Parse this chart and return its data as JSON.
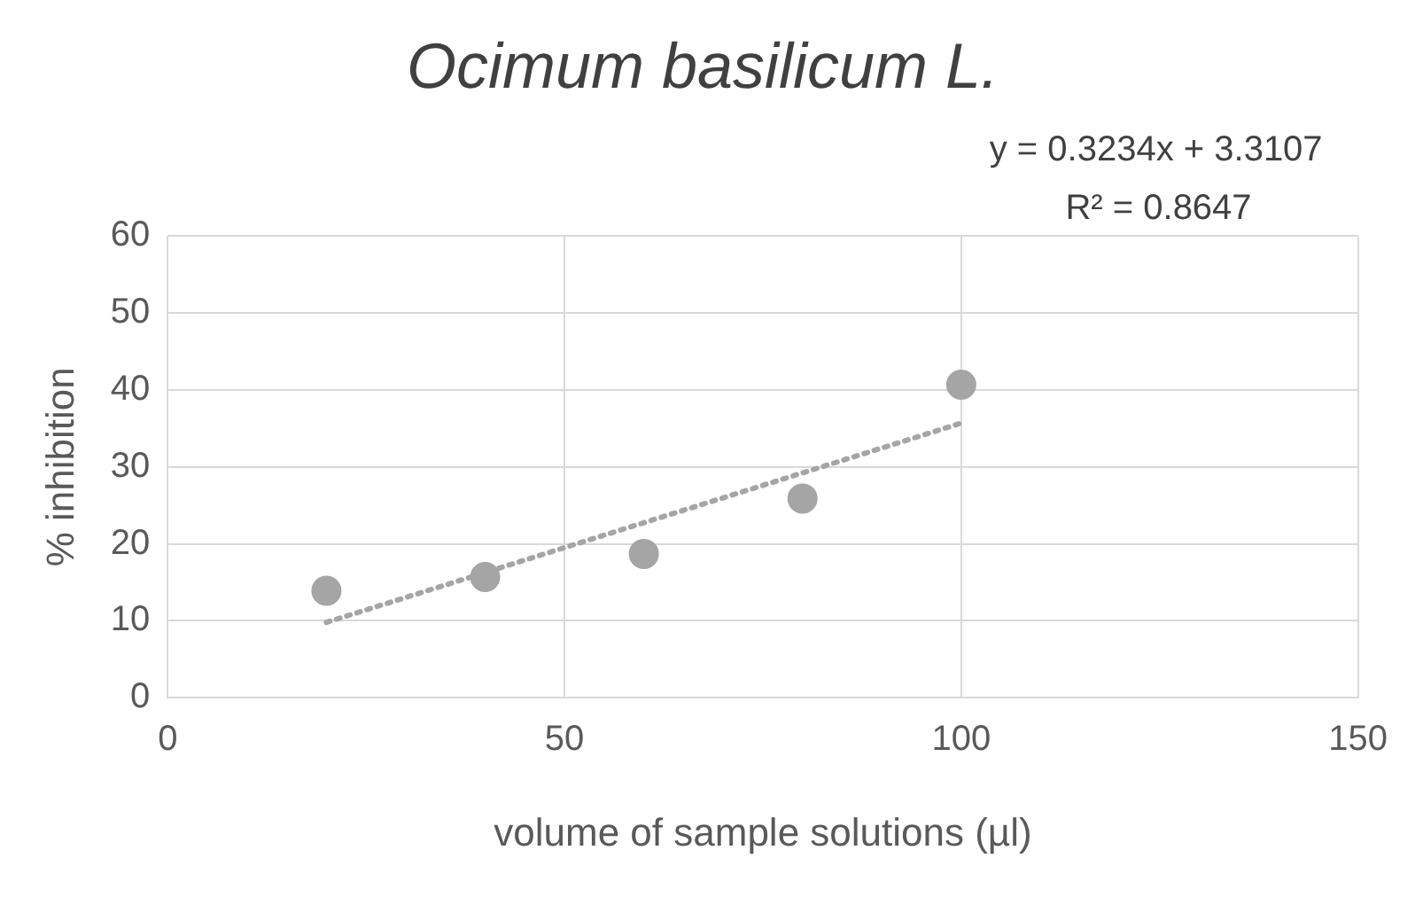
{
  "chart_data": {
    "type": "scatter",
    "title": "Ocimum basilicum L.",
    "xlabel": "volume of sample solutions (µl)",
    "ylabel": "% inhibition",
    "annotations": [
      "y = 0.3234x + 3.3107",
      "R² = 0.8647"
    ],
    "xlim": [
      0,
      150
    ],
    "xticks": [
      0,
      50,
      100,
      150
    ],
    "ylim": [
      0,
      60
    ],
    "yticks": [
      0,
      10,
      20,
      30,
      40,
      50,
      60
    ],
    "grid": true,
    "marker": "circle",
    "series": [
      {
        "type": "scatter",
        "color": "#a5a5a5",
        "x": [
          20,
          40,
          60,
          80,
          100
        ],
        "values": [
          13.9,
          15.7,
          18.7,
          25.9,
          40.7
        ]
      },
      {
        "type": "line",
        "color": "#a5a5a5",
        "marker": "none",
        "line_style": "dotted",
        "x": [
          20,
          100
        ],
        "values": [
          9.8,
          35.7
        ]
      }
    ]
  }
}
